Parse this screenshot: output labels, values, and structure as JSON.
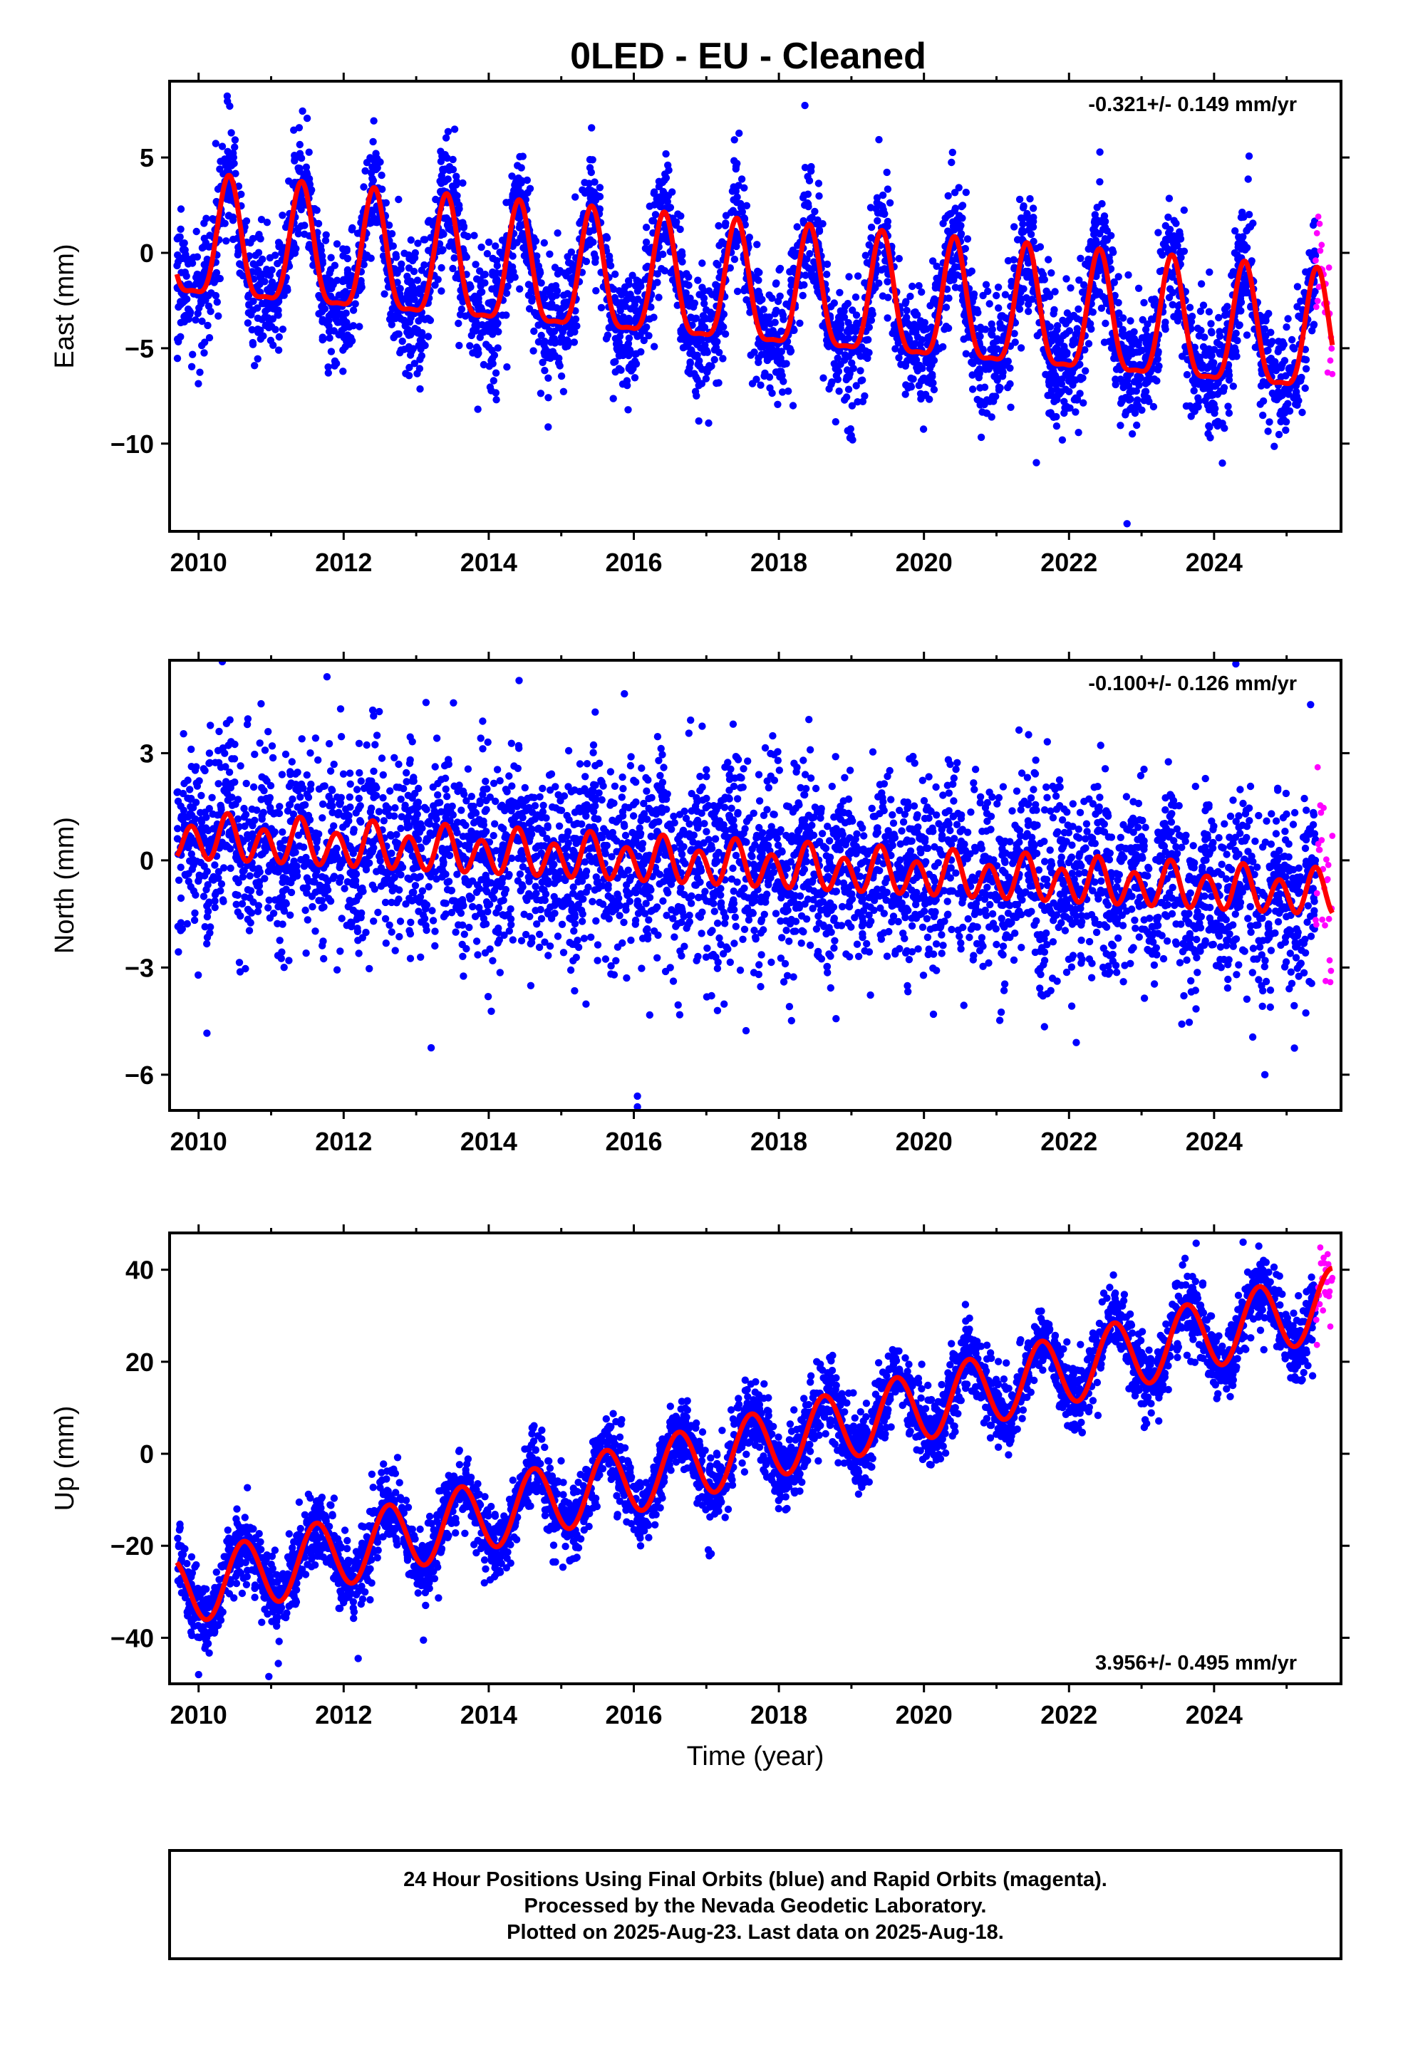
{
  "title": "0LED  - EU - Cleaned",
  "xlabel": "Time (year)",
  "colors": {
    "final": "#0000ff",
    "rapid": "#ff00ff",
    "model": "#ff0000",
    "axis": "#000000"
  },
  "footer": {
    "line1": "24 Hour Positions Using Final Orbits (blue) and Rapid Orbits (magenta).",
    "line2": "Processed by the Nevada Geodetic Laboratory.",
    "line3": "Plotted on 2025-Aug-23. Last data on 2025-Aug-18."
  },
  "chart_data": [
    {
      "type": "scatter",
      "panel": "East",
      "ylabel": "East (mm)",
      "rate_label": "-0.321+/- 0.149 mm/yr",
      "rate_position": "top-right",
      "xlim": [
        2009.6,
        2025.75
      ],
      "ylim": [
        -14.6,
        9.0
      ],
      "xticks": [
        2010,
        2012,
        2014,
        2016,
        2018,
        2020,
        2022,
        2024
      ],
      "yticks": [
        5,
        0,
        -5,
        -10
      ],
      "trend_mm_per_yr": -0.321,
      "model": {
        "offset_at_2010": 0.2,
        "annual_amplitude": 3.1,
        "annual_peak_phase": 0.42,
        "semiannual_amplitude": 0.9
      },
      "scatter_sd_mm": 1.6,
      "outliers": [
        [
          2009.75,
          -4.4
        ],
        [
          2011.9,
          -5.8
        ],
        [
          2013.85,
          -8.2
        ],
        [
          2021.55,
          -11.0
        ],
        [
          2022.8,
          -14.2
        ]
      ],
      "series": [
        {
          "name": "Final Orbits",
          "color": "#0000ff",
          "x_range": [
            2009.7,
            2025.4
          ]
        },
        {
          "name": "Rapid Orbits",
          "color": "#ff00ff",
          "x_range": [
            2025.4,
            2025.63
          ]
        },
        {
          "name": "Model",
          "color": "#ff0000"
        }
      ]
    },
    {
      "type": "scatter",
      "panel": "North",
      "ylabel": "North (mm)",
      "rate_label": "-0.100+/- 0.126 mm/yr",
      "rate_position": "top-right",
      "xlim": [
        2009.6,
        2025.75
      ],
      "ylim": [
        -7.0,
        5.6
      ],
      "xticks": [
        2010,
        2012,
        2014,
        2016,
        2018,
        2020,
        2022,
        2024
      ],
      "yticks": [
        3,
        0,
        -3,
        -6
      ],
      "trend_mm_per_yr": -0.1,
      "model": {
        "offset_at_2010": 0.6,
        "annual_amplitude": 0.2,
        "annual_peak_phase": 0.4,
        "semiannual_amplitude": 0.55
      },
      "scatter_sd_mm": 1.3,
      "outliers": [
        [
          2016.05,
          -6.6
        ],
        [
          2016.05,
          -6.9
        ],
        [
          2024.3,
          5.5
        ],
        [
          2024.7,
          -6.0
        ],
        [
          2022.1,
          -5.1
        ]
      ],
      "series": [
        {
          "name": "Final Orbits",
          "color": "#0000ff",
          "x_range": [
            2009.7,
            2025.4
          ]
        },
        {
          "name": "Rapid Orbits",
          "color": "#ff00ff",
          "x_range": [
            2025.4,
            2025.63
          ]
        },
        {
          "name": "Model",
          "color": "#ff0000"
        }
      ]
    },
    {
      "type": "scatter",
      "panel": "Up",
      "ylabel": "Up (mm)",
      "rate_label": "3.956+/- 0.495 mm/yr",
      "rate_position": "bottom-right",
      "xlim": [
        2009.6,
        2025.75
      ],
      "ylim": [
        -50,
        48
      ],
      "xticks": [
        2010,
        2012,
        2014,
        2016,
        2018,
        2020,
        2022,
        2024
      ],
      "yticks": [
        40,
        20,
        0,
        -20,
        -40
      ],
      "trend_mm_per_yr": 3.956,
      "model": {
        "offset_at_2010": -29.0,
        "annual_amplitude": 7.5,
        "annual_peak_phase": 0.62,
        "semiannual_amplitude": 0.0
      },
      "scatter_sd_mm": 4.0,
      "outliers": [
        [
          2010.0,
          -48.0
        ],
        [
          2012.2,
          -44.5
        ],
        [
          2013.1,
          -40.5
        ],
        [
          2024.4,
          46.0
        ]
      ],
      "series": [
        {
          "name": "Final Orbits",
          "color": "#0000ff",
          "x_range": [
            2009.7,
            2025.4
          ]
        },
        {
          "name": "Rapid Orbits",
          "color": "#ff00ff",
          "x_range": [
            2025.4,
            2025.63
          ]
        },
        {
          "name": "Model",
          "color": "#ff0000"
        }
      ]
    }
  ]
}
